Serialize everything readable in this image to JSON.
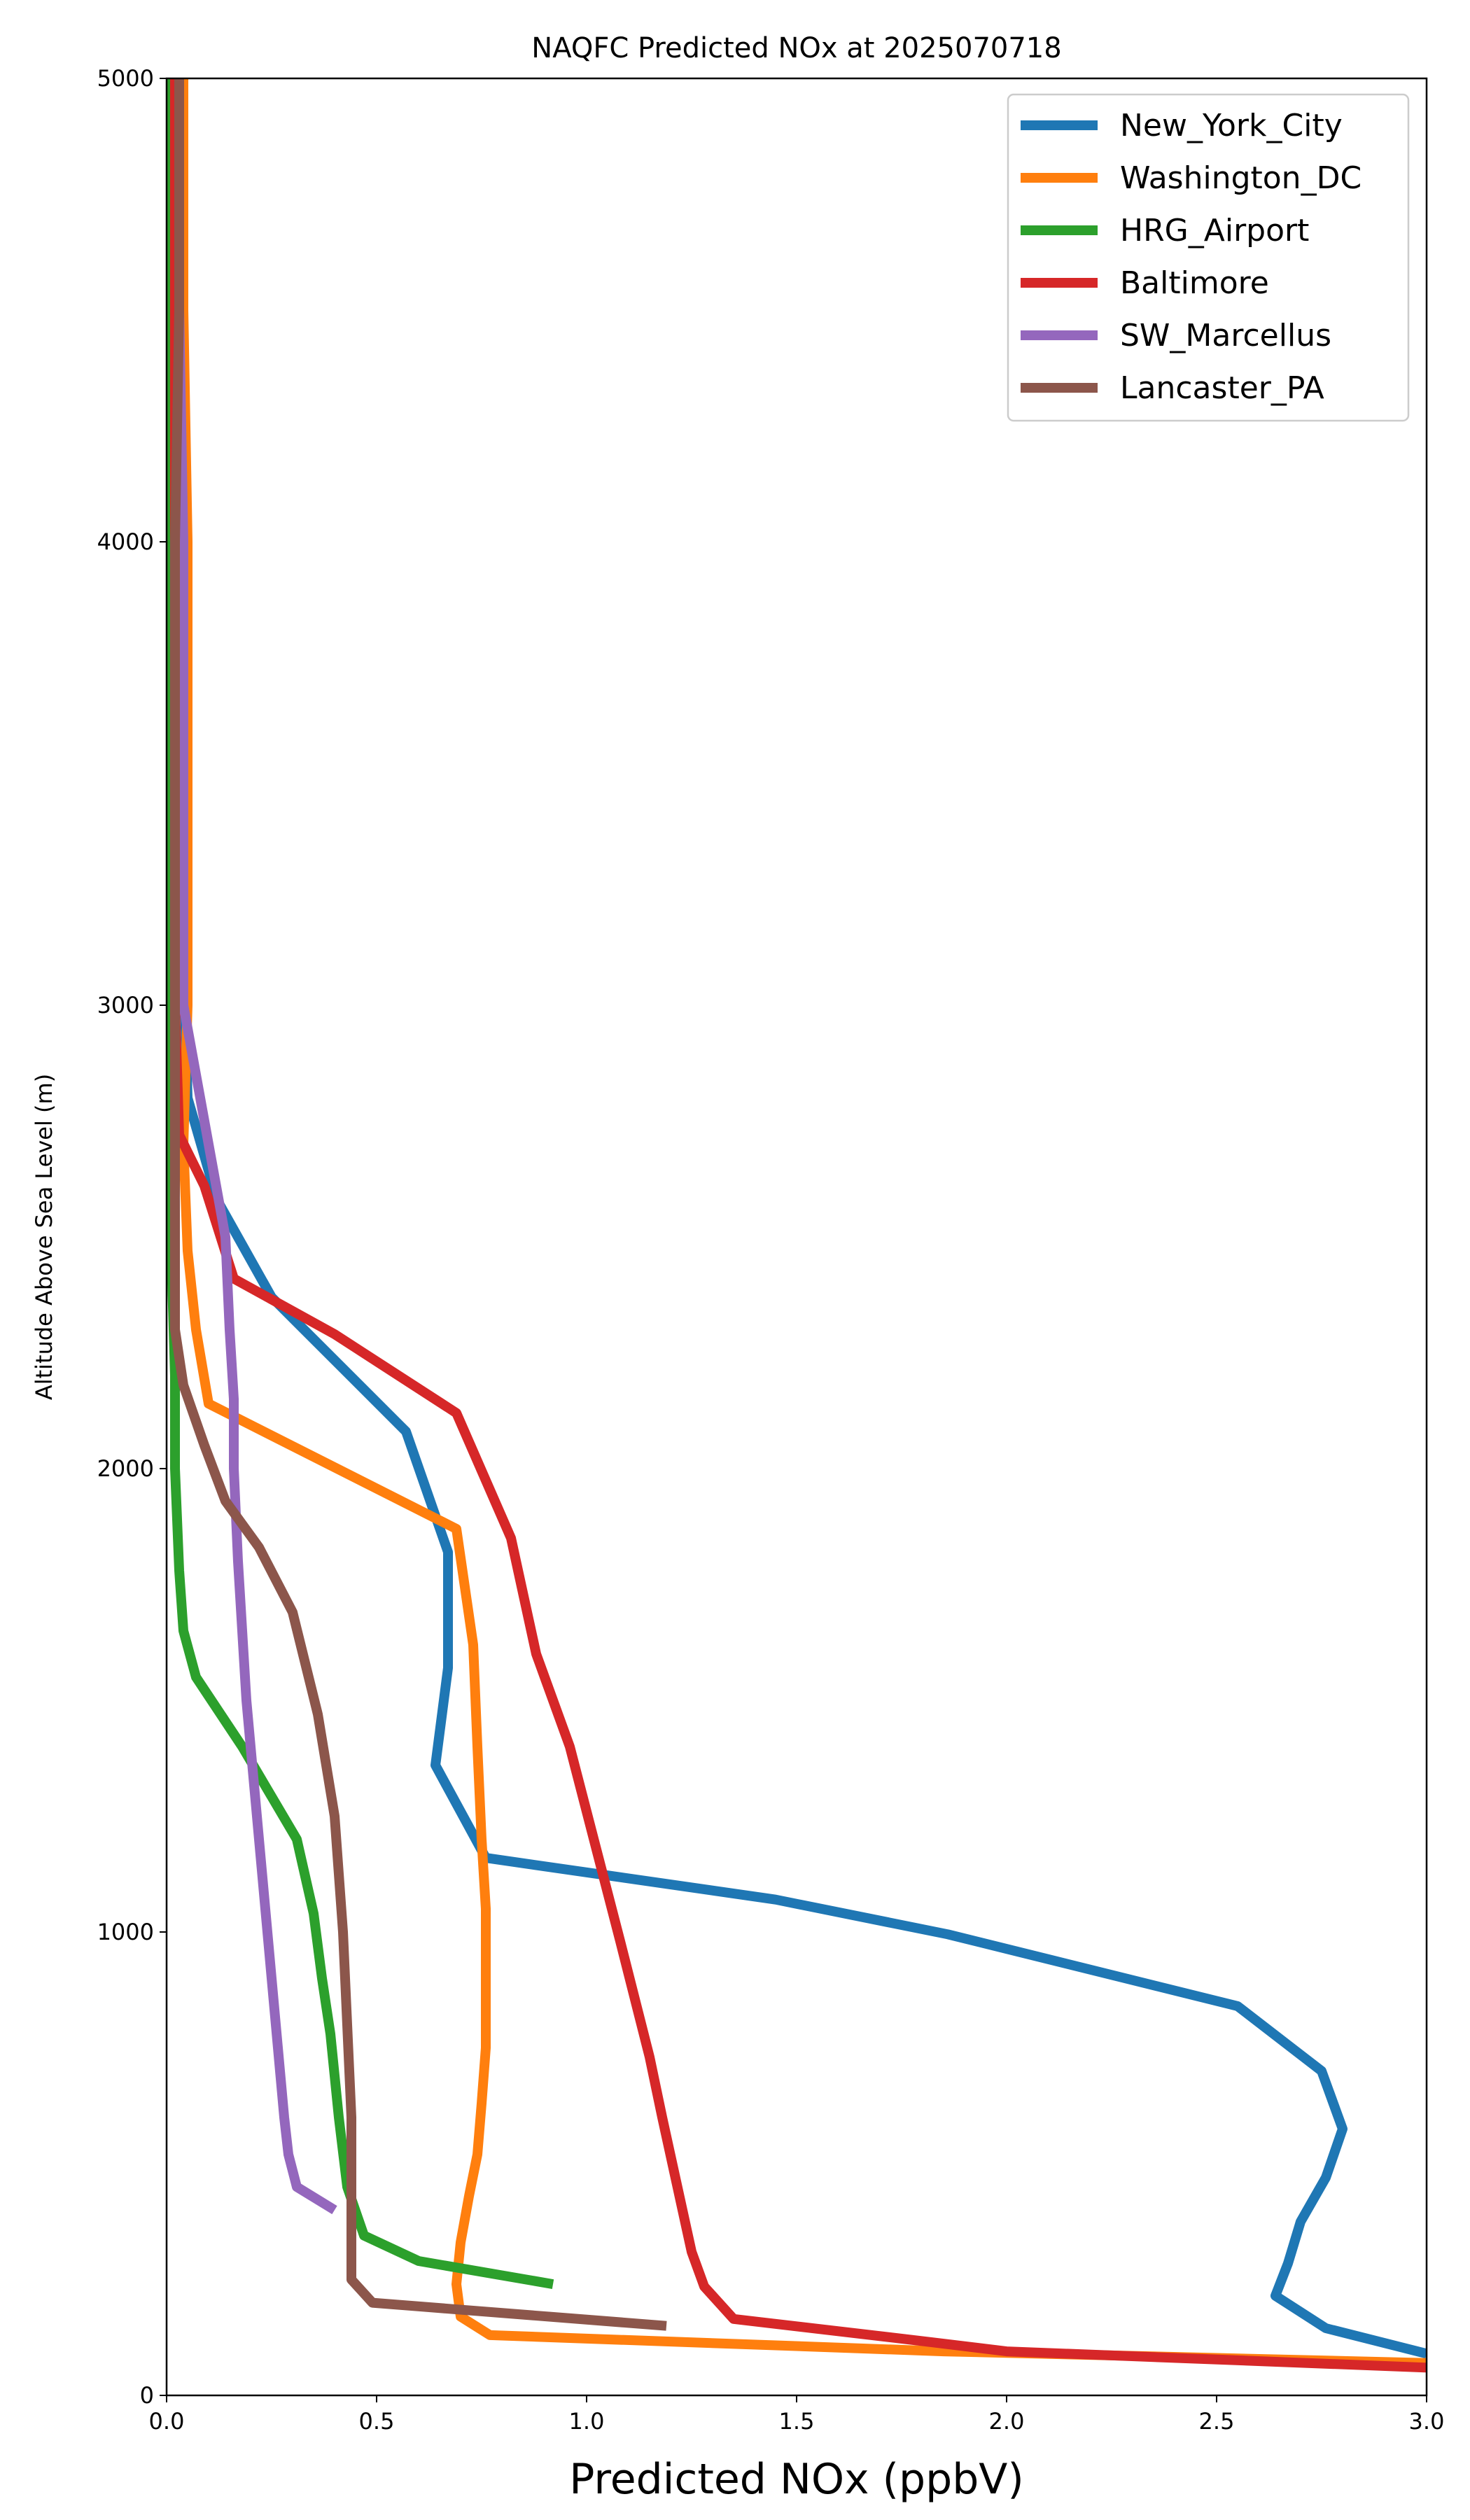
{
  "chart_data": {
    "type": "line",
    "title": "NAQFC Predicted NOx at 2025070718",
    "xlabel": "Predicted NOx (ppbV)",
    "ylabel": "Altitude Above Sea Level (m)",
    "xlim": [
      0,
      3.0
    ],
    "ylim": [
      0,
      5000
    ],
    "xticks": [
      0.0,
      0.5,
      1.0,
      1.5,
      2.0,
      2.5,
      3.0
    ],
    "xtick_labels": [
      "0.0",
      "0.5",
      "1.0",
      "1.5",
      "2.0",
      "2.5",
      "3.0"
    ],
    "yticks": [
      0,
      1000,
      2000,
      3000,
      4000,
      5000
    ],
    "ytick_labels": [
      "0",
      "1000",
      "2000",
      "3000",
      "4000",
      "5000"
    ],
    "grid": false,
    "legend_position": "top-right",
    "series": [
      {
        "name": "New_York_City",
        "color": "#1f77b4",
        "points": [
          [
            3.0,
            90
          ],
          [
            2.76,
            145
          ],
          [
            2.64,
            215
          ],
          [
            2.67,
            285
          ],
          [
            2.7,
            375
          ],
          [
            2.76,
            470
          ],
          [
            2.8,
            575
          ],
          [
            2.75,
            700
          ],
          [
            2.55,
            840
          ],
          [
            1.86,
            995
          ],
          [
            1.45,
            1070
          ],
          [
            0.76,
            1160
          ],
          [
            0.64,
            1360
          ],
          [
            0.67,
            1570
          ],
          [
            0.67,
            1820
          ],
          [
            0.57,
            2080
          ],
          [
            0.25,
            2370
          ],
          [
            0.12,
            2580
          ],
          [
            0.05,
            2800
          ],
          [
            0.04,
            3100
          ],
          [
            0.03,
            3500
          ],
          [
            0.03,
            4000
          ],
          [
            0.03,
            4500
          ],
          [
            0.03,
            5000
          ]
        ]
      },
      {
        "name": "Washington_DC",
        "color": "#ff7f0e",
        "points": [
          [
            3.0,
            70
          ],
          [
            1.85,
            95
          ],
          [
            0.77,
            130
          ],
          [
            0.7,
            170
          ],
          [
            0.69,
            240
          ],
          [
            0.7,
            330
          ],
          [
            0.72,
            430
          ],
          [
            0.74,
            520
          ],
          [
            0.75,
            630
          ],
          [
            0.76,
            750
          ],
          [
            0.76,
            900
          ],
          [
            0.76,
            1050
          ],
          [
            0.75,
            1200
          ],
          [
            0.74,
            1400
          ],
          [
            0.73,
            1620
          ],
          [
            0.69,
            1870
          ],
          [
            0.1,
            2140
          ],
          [
            0.07,
            2300
          ],
          [
            0.05,
            2470
          ],
          [
            0.04,
            2700
          ],
          [
            0.05,
            3000
          ],
          [
            0.05,
            3500
          ],
          [
            0.05,
            4000
          ],
          [
            0.04,
            4500
          ],
          [
            0.04,
            5000
          ]
        ]
      },
      {
        "name": "HRG_Airport",
        "color": "#2ca02c",
        "points": [
          [
            0.92,
            240
          ],
          [
            0.6,
            290
          ],
          [
            0.47,
            345
          ],
          [
            0.43,
            450
          ],
          [
            0.41,
            600
          ],
          [
            0.39,
            780
          ],
          [
            0.37,
            900
          ],
          [
            0.35,
            1040
          ],
          [
            0.31,
            1200
          ],
          [
            0.18,
            1400
          ],
          [
            0.07,
            1550
          ],
          [
            0.04,
            1650
          ],
          [
            0.03,
            1780
          ],
          [
            0.02,
            2000
          ],
          [
            0.02,
            2200
          ],
          [
            0.01,
            2500
          ],
          [
            0.01,
            3000
          ],
          [
            0.01,
            3500
          ],
          [
            0.01,
            4000
          ],
          [
            0.01,
            4500
          ],
          [
            0.01,
            5000
          ]
        ]
      },
      {
        "name": "Baltimore",
        "color": "#d62728",
        "points": [
          [
            3.0,
            60
          ],
          [
            2.0,
            95
          ],
          [
            1.82,
            115
          ],
          [
            1.35,
            165
          ],
          [
            1.28,
            235
          ],
          [
            1.25,
            310
          ],
          [
            1.18,
            600
          ],
          [
            1.15,
            730
          ],
          [
            1.08,
            980
          ],
          [
            0.96,
            1400
          ],
          [
            0.88,
            1600
          ],
          [
            0.82,
            1850
          ],
          [
            0.69,
            2120
          ],
          [
            0.4,
            2290
          ],
          [
            0.16,
            2410
          ],
          [
            0.09,
            2610
          ],
          [
            0.03,
            2720
          ],
          [
            0.02,
            3000
          ],
          [
            0.02,
            3500
          ],
          [
            0.02,
            4000
          ],
          [
            0.02,
            4500
          ],
          [
            0.02,
            5000
          ]
        ]
      },
      {
        "name": "SW_Marcellus",
        "color": "#9467bd",
        "points": [
          [
            0.4,
            400
          ],
          [
            0.31,
            450
          ],
          [
            0.29,
            520
          ],
          [
            0.28,
            600
          ],
          [
            0.25,
            900
          ],
          [
            0.22,
            1200
          ],
          [
            0.19,
            1500
          ],
          [
            0.17,
            1800
          ],
          [
            0.16,
            2000
          ],
          [
            0.16,
            2150
          ],
          [
            0.15,
            2300
          ],
          [
            0.14,
            2500
          ],
          [
            0.1,
            2700
          ],
          [
            0.04,
            3000
          ],
          [
            0.04,
            3500
          ],
          [
            0.04,
            4000
          ],
          [
            0.03,
            4500
          ],
          [
            0.03,
            5000
          ]
        ]
      },
      {
        "name": "Lancaster_PA",
        "color": "#8c564b",
        "points": [
          [
            1.19,
            150
          ],
          [
            0.49,
            200
          ],
          [
            0.44,
            250
          ],
          [
            0.44,
            400
          ],
          [
            0.44,
            600
          ],
          [
            0.43,
            800
          ],
          [
            0.42,
            1000
          ],
          [
            0.4,
            1250
          ],
          [
            0.36,
            1470
          ],
          [
            0.3,
            1690
          ],
          [
            0.22,
            1830
          ],
          [
            0.14,
            1930
          ],
          [
            0.09,
            2050
          ],
          [
            0.04,
            2180
          ],
          [
            0.02,
            2300
          ],
          [
            0.02,
            2700
          ],
          [
            0.02,
            3000
          ],
          [
            0.02,
            3500
          ],
          [
            0.02,
            4000
          ],
          [
            0.03,
            4500
          ],
          [
            0.03,
            5000
          ]
        ]
      }
    ]
  }
}
